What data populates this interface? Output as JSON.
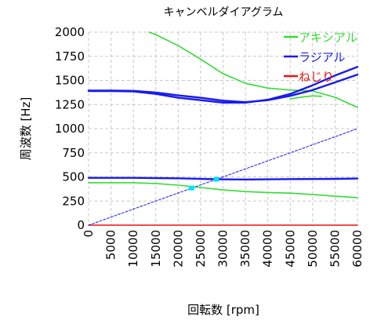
{
  "chart_data": {
    "type": "line",
    "title": "キャンベルダイアグラム",
    "xlabel": "回転数 [rpm]",
    "ylabel": "周波数 [Hz]",
    "xlim": [
      0,
      60000
    ],
    "ylim": [
      0,
      2000
    ],
    "x_ticks": [
      "0",
      "5000",
      "10000",
      "15000",
      "20000",
      "25000",
      "30000",
      "35000",
      "40000",
      "45000",
      "50000",
      "55000",
      "60000"
    ],
    "y_ticks": [
      "0",
      "250",
      "500",
      "750",
      "1000",
      "1250",
      "1500",
      "1750",
      "2000"
    ],
    "grid": true,
    "legend_position": "top-right",
    "legend": [
      {
        "name": "アキシアル",
        "color": "#33dd33"
      },
      {
        "name": "ラジアル",
        "color": "#1a1aee"
      },
      {
        "name": "ねじり",
        "color": "#ee1111"
      }
    ],
    "series": [
      {
        "name": "アキシアル",
        "group": "axial",
        "color": "#33dd33",
        "x": [
          0,
          5000,
          10000,
          15000,
          20000,
          25000,
          30000,
          35000,
          40000,
          45000,
          50000,
          55000,
          60000
        ],
        "y": [
          440,
          440,
          440,
          432,
          415,
          390,
          365,
          348,
          338,
          332,
          318,
          300,
          285
        ]
      },
      {
        "name": "アキシアル",
        "group": "axial",
        "color": "#33dd33",
        "x": [
          13500,
          15000,
          20000,
          25000,
          30000,
          35000,
          40000,
          45000,
          50000,
          55000,
          60000
        ],
        "y": [
          2000,
          1975,
          1860,
          1720,
          1570,
          1470,
          1420,
          1400,
          1390,
          1325,
          1220
        ]
      },
      {
        "name": "アキシアル",
        "group": "axial",
        "color": "#33dd33",
        "x": [
          45000,
          48000,
          50000,
          52000
        ],
        "y": [
          1310,
          1330,
          1340,
          1335
        ]
      },
      {
        "name": "ラジアル",
        "group": "radial",
        "color": "#1a1aee",
        "x": [
          0,
          5000,
          10000,
          15000,
          20000,
          25000,
          30000,
          35000,
          40000,
          45000,
          50000,
          55000,
          60000
        ],
        "y": [
          490,
          490,
          490,
          488,
          485,
          480,
          475,
          473,
          475,
          477,
          478,
          480,
          483
        ]
      },
      {
        "name": "ラジアル",
        "group": "radial",
        "color": "#1a1aee",
        "x": [
          0,
          5000,
          10000,
          15000,
          20000,
          25000,
          30000,
          35000,
          40000,
          45000,
          50000,
          55000,
          60000
        ],
        "y": [
          1390,
          1390,
          1385,
          1360,
          1320,
          1295,
          1270,
          1270,
          1300,
          1360,
          1450,
          1550,
          1640
        ]
      },
      {
        "name": "ラジアル",
        "group": "radial",
        "color": "#1a1aee",
        "x": [
          0,
          5000,
          10000,
          15000,
          20000,
          25000,
          30000,
          35000,
          40000,
          45000,
          50000,
          55000,
          60000
        ],
        "y": [
          1395,
          1395,
          1392,
          1375,
          1345,
          1320,
          1290,
          1275,
          1295,
          1340,
          1400,
          1480,
          1560
        ]
      },
      {
        "name": "ねじり",
        "group": "torsion",
        "color": "#ee1111",
        "x": [
          0,
          60000
        ],
        "y": [
          0,
          0
        ]
      },
      {
        "name": "",
        "group": "order",
        "color": "#1a1aee",
        "dashed": true,
        "x": [
          0,
          60000
        ],
        "y": [
          0,
          1000
        ]
      }
    ],
    "markers": [
      {
        "x": 28500,
        "y": 475,
        "color": "#00e5ee"
      },
      {
        "x": 23000,
        "y": 385,
        "color": "#00e5ee"
      }
    ]
  }
}
